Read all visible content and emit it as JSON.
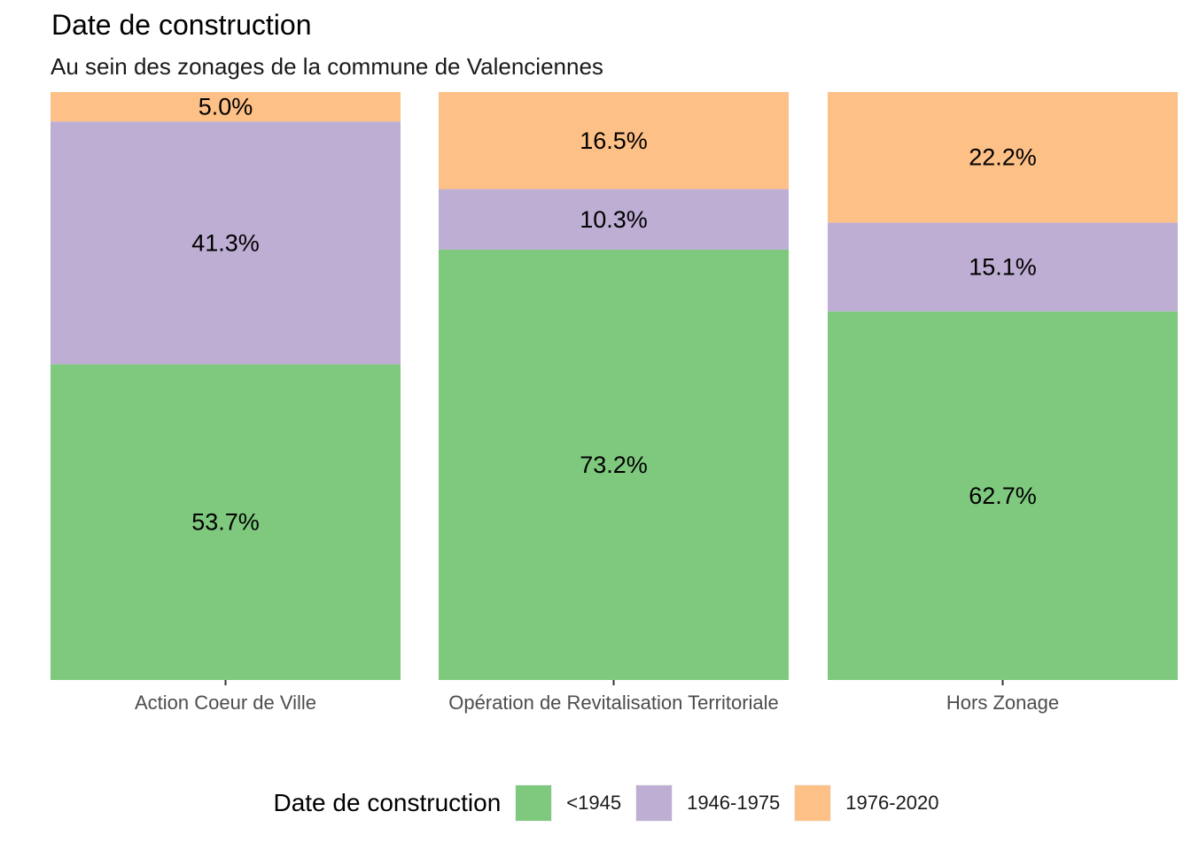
{
  "chart_data": {
    "type": "bar",
    "stacked": true,
    "orientation": "vertical",
    "title": "Date de construction",
    "subtitle": "Au sein des zonages de la commune de Valenciennes",
    "xlabel": "",
    "ylabel": "",
    "ylim": [
      0,
      100
    ],
    "grid": false,
    "legend_position": "bottom",
    "legend_title": "Date de construction",
    "categories": [
      "Action Coeur de Ville",
      "Opération de Revitalisation Territoriale",
      "Hors Zonage"
    ],
    "series": [
      {
        "name": "<1945",
        "color": "#7fc97f",
        "values": [
          53.7,
          73.2,
          62.7
        ],
        "labels": [
          "53.7%",
          "73.2%",
          "62.7%"
        ]
      },
      {
        "name": "1946-1975",
        "color": "#beaed4",
        "values": [
          41.3,
          10.3,
          15.1
        ],
        "labels": [
          "41.3%",
          "10.3%",
          "15.1%"
        ]
      },
      {
        "name": "1976-2020",
        "color": "#fdc086",
        "values": [
          5.0,
          16.5,
          22.2
        ],
        "labels": [
          "5.0%",
          "16.5%",
          "22.2%"
        ]
      }
    ]
  }
}
